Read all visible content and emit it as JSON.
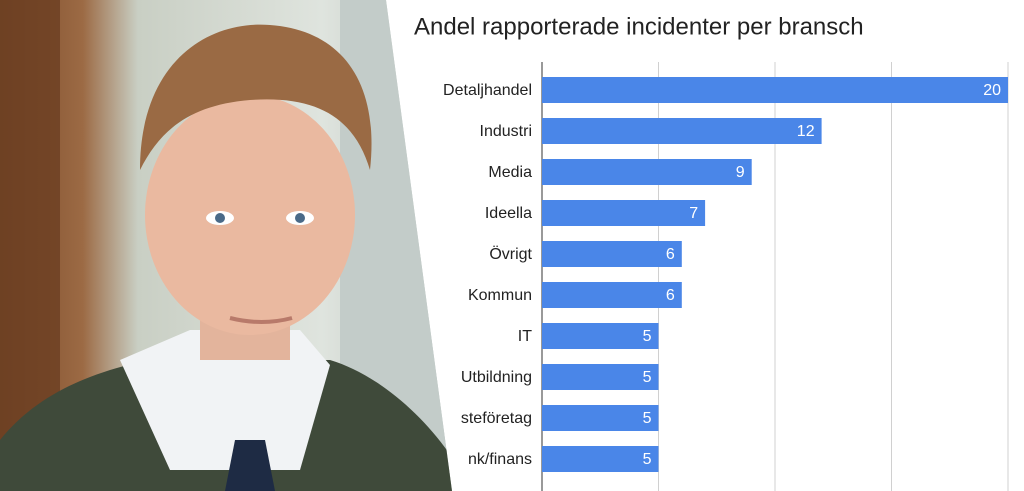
{
  "chart_data": {
    "type": "bar",
    "orientation": "horizontal",
    "title": "Andel rapporterade incidenter per bransch",
    "categories": [
      "Detaljhandel",
      "Industri",
      "Media",
      "Ideella",
      "Övrigt",
      "Kommun",
      "IT",
      "Utbildning",
      "steföretag",
      "nk/finans"
    ],
    "values": [
      20,
      12,
      9,
      7,
      6,
      6,
      5,
      5,
      5,
      5
    ],
    "color": "#4a86e8",
    "xlim": [
      0,
      20
    ],
    "xticks": [
      0,
      5,
      10,
      15,
      20
    ],
    "grid": true
  }
}
